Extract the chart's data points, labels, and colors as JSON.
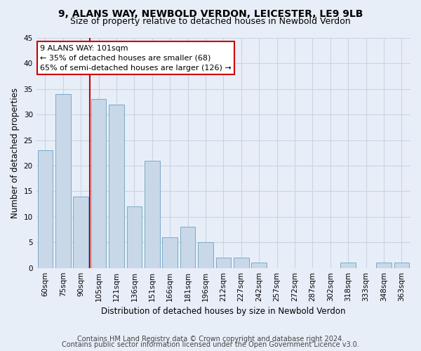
{
  "title_line1": "9, ALANS WAY, NEWBOLD VERDON, LEICESTER, LE9 9LB",
  "title_line2": "Size of property relative to detached houses in Newbold Verdon",
  "xlabel": "Distribution of detached houses by size in Newbold Verdon",
  "ylabel": "Number of detached properties",
  "categories": [
    "60sqm",
    "75sqm",
    "90sqm",
    "105sqm",
    "121sqm",
    "136sqm",
    "151sqm",
    "166sqm",
    "181sqm",
    "196sqm",
    "212sqm",
    "227sqm",
    "242sqm",
    "257sqm",
    "272sqm",
    "287sqm",
    "302sqm",
    "318sqm",
    "333sqm",
    "348sqm",
    "363sqm"
  ],
  "values": [
    23,
    34,
    14,
    33,
    32,
    12,
    21,
    6,
    8,
    5,
    2,
    2,
    1,
    0,
    0,
    0,
    0,
    1,
    0,
    1,
    1
  ],
  "bar_color": "#c8d8e8",
  "bar_edge_color": "#7aaac8",
  "vline_x": 2.5,
  "vline_color": "#cc0000",
  "annotation_text": "9 ALANS WAY: 101sqm\n← 35% of detached houses are smaller (68)\n65% of semi-detached houses are larger (126) →",
  "annotation_box_color": "#ffffff",
  "annotation_box_edge": "#cc0000",
  "ylim": [
    0,
    45
  ],
  "yticks": [
    0,
    5,
    10,
    15,
    20,
    25,
    30,
    35,
    40,
    45
  ],
  "grid_color": "#c8d4e4",
  "background_color": "#e8eef8",
  "footer_line1": "Contains HM Land Registry data © Crown copyright and database right 2024.",
  "footer_line2": "Contains public sector information licensed under the Open Government Licence v3.0.",
  "title_fontsize": 10,
  "subtitle_fontsize": 9,
  "axis_label_fontsize": 8.5,
  "tick_fontsize": 7.5,
  "annotation_fontsize": 8,
  "footer_fontsize": 7
}
